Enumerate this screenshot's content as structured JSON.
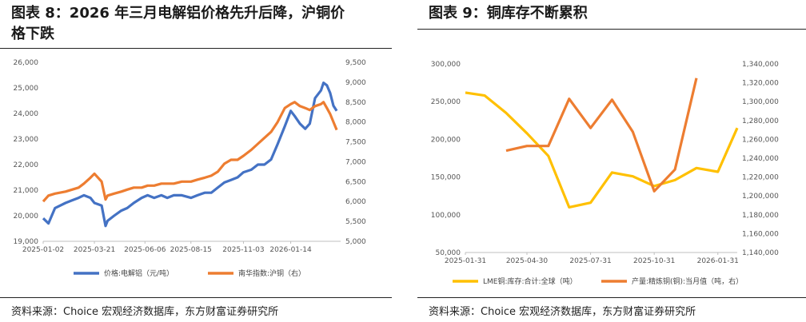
{
  "left": {
    "title_line1": "图表 8：2026 年三月电解铝价格先升后降，沪铜价",
    "title_line2": "格下跌",
    "source": "资料来源：Choice 宏观经济数据库，东方财富证券研究所"
  },
  "right": {
    "title": "图表 9：铜库存不断累积",
    "source": "资料来源：Choice 宏观经济数据库，东方财富证券研究所"
  },
  "chart_data": [
    {
      "type": "line",
      "title": "",
      "x_ticks": [
        "2025-01-02",
        "2025-03-21",
        "2025-06-06",
        "2025-08-15",
        "2025-11-03",
        "2026-01-14"
      ],
      "x_range": [
        "2025-01-02",
        "2026-03-31"
      ],
      "y_left": {
        "min": 19000,
        "max": 26000,
        "ticks": [
          "19,000",
          "20,000",
          "21,000",
          "22,000",
          "23,000",
          "24,000",
          "25,000",
          "26,000"
        ]
      },
      "y_right": {
        "min": 5000,
        "max": 9500,
        "ticks": [
          "5,000",
          "5,500",
          "6,000",
          "6,500",
          "7,000",
          "7,500",
          "8,000",
          "8,500",
          "9,000",
          "9,500"
        ]
      },
      "legend_position": "bottom",
      "series": [
        {
          "name": "价格:电解铝（元/吨）",
          "axis": "left",
          "color": "#4472c4",
          "x": [
            "2025-01-02",
            "2025-01-10",
            "2025-01-20",
            "2025-02-05",
            "2025-02-15",
            "2025-02-25",
            "2025-03-05",
            "2025-03-15",
            "2025-03-21",
            "2025-04-01",
            "2025-04-07",
            "2025-04-10",
            "2025-04-20",
            "2025-05-01",
            "2025-05-10",
            "2025-05-20",
            "2025-06-01",
            "2025-06-10",
            "2025-06-20",
            "2025-07-01",
            "2025-07-10",
            "2025-07-20",
            "2025-08-01",
            "2025-08-15",
            "2025-08-25",
            "2025-09-05",
            "2025-09-15",
            "2025-09-25",
            "2025-10-05",
            "2025-10-15",
            "2025-10-25",
            "2025-11-03",
            "2025-11-15",
            "2025-11-25",
            "2025-12-05",
            "2025-12-15",
            "2025-12-25",
            "2026-01-05",
            "2026-01-14",
            "2026-01-20",
            "2026-01-28",
            "2026-02-05",
            "2026-02-12",
            "2026-02-20",
            "2026-03-01",
            "2026-03-05",
            "2026-03-10",
            "2026-03-15",
            "2026-03-20",
            "2026-03-25"
          ],
          "values": [
            19900,
            19700,
            20300,
            20500,
            20600,
            20700,
            20800,
            20700,
            20500,
            20400,
            19600,
            19800,
            20000,
            20200,
            20300,
            20500,
            20700,
            20800,
            20700,
            20800,
            20700,
            20800,
            20800,
            20700,
            20800,
            20900,
            20900,
            21100,
            21300,
            21400,
            21500,
            21700,
            21800,
            22000,
            22000,
            22200,
            22800,
            23500,
            24100,
            23900,
            23600,
            23400,
            23600,
            24600,
            24900,
            25200,
            25100,
            24800,
            24300,
            24100
          ]
        },
        {
          "name": "南华指数:沪铜（右）",
          "axis": "right",
          "color": "#ed7d31",
          "x": [
            "2025-01-02",
            "2025-01-10",
            "2025-01-20",
            "2025-02-05",
            "2025-02-15",
            "2025-02-25",
            "2025-03-05",
            "2025-03-15",
            "2025-03-21",
            "2025-04-01",
            "2025-04-07",
            "2025-04-10",
            "2025-04-20",
            "2025-05-01",
            "2025-05-10",
            "2025-05-20",
            "2025-06-01",
            "2025-06-10",
            "2025-06-20",
            "2025-07-01",
            "2025-07-10",
            "2025-07-20",
            "2025-08-01",
            "2025-08-15",
            "2025-08-25",
            "2025-09-05",
            "2025-09-15",
            "2025-09-25",
            "2025-10-05",
            "2025-10-15",
            "2025-10-25",
            "2025-11-03",
            "2025-11-15",
            "2025-11-25",
            "2025-12-05",
            "2025-12-15",
            "2025-12-25",
            "2026-01-05",
            "2026-01-14",
            "2026-01-20",
            "2026-01-28",
            "2026-02-05",
            "2026-02-12",
            "2026-02-20",
            "2026-03-01",
            "2026-03-05",
            "2026-03-10",
            "2026-03-15",
            "2026-03-20",
            "2026-03-25"
          ],
          "values": [
            6000,
            6150,
            6200,
            6250,
            6300,
            6350,
            6450,
            6600,
            6700,
            6500,
            6050,
            6150,
            6200,
            6250,
            6300,
            6350,
            6350,
            6400,
            6400,
            6450,
            6450,
            6450,
            6500,
            6500,
            6550,
            6600,
            6650,
            6750,
            6950,
            7050,
            7050,
            7150,
            7300,
            7450,
            7600,
            7750,
            8000,
            8350,
            8450,
            8500,
            8400,
            8350,
            8300,
            8400,
            8450,
            8500,
            8350,
            8200,
            8000,
            7800
          ]
        }
      ]
    },
    {
      "type": "line",
      "title": "",
      "x_ticks": [
        "2025-01-31",
        "2025-04-30",
        "2025-07-31",
        "2025-10-31",
        "2026-01-31"
      ],
      "x_range": [
        "2025-01-31",
        "2026-02-28"
      ],
      "y_left": {
        "min": 50000,
        "max": 300000,
        "ticks": [
          "50,000",
          "100,000",
          "150,000",
          "200,000",
          "250,000",
          "300,000"
        ]
      },
      "y_right": {
        "min": 1140000,
        "max": 1340000,
        "ticks": [
          "1,140,000",
          "1,160,000",
          "1,180,000",
          "1,200,000",
          "1,220,000",
          "1,240,000",
          "1,260,000",
          "1,280,000",
          "1,300,000",
          "1,320,000",
          "1,340,000"
        ]
      },
      "legend_position": "bottom",
      "series": [
        {
          "name": "LME铜:库存:合计:全球（吨）",
          "axis": "left",
          "color": "#ffc000",
          "x": [
            "2025-01-31",
            "2025-02-28",
            "2025-03-31",
            "2025-04-30",
            "2025-05-31",
            "2025-06-30",
            "2025-07-31",
            "2025-08-31",
            "2025-09-30",
            "2025-10-31",
            "2025-11-30",
            "2025-12-31",
            "2026-01-31",
            "2026-02-28"
          ],
          "values": [
            262000,
            258000,
            235000,
            208000,
            178000,
            110000,
            116000,
            156000,
            151000,
            138000,
            146000,
            162000,
            157000,
            215000
          ]
        },
        {
          "name": "产量:精炼铜(铜):当月值（吨，右）",
          "axis": "right",
          "color": "#ed7d31",
          "x": [
            "2025-03-31",
            "2025-04-30",
            "2025-05-31",
            "2025-06-30",
            "2025-07-31",
            "2025-08-31",
            "2025-09-30",
            "2025-10-31",
            "2025-11-30",
            "2025-12-31"
          ],
          "values": [
            1248000,
            1253000,
            1253000,
            1303000,
            1272000,
            1302000,
            1268000,
            1205000,
            1228000,
            1325000
          ]
        }
      ]
    }
  ]
}
